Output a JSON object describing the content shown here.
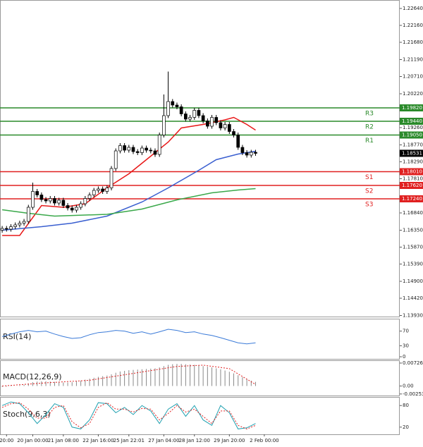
{
  "chart_data": [
    {
      "type": "candlestick",
      "xlim": [
        -0.5,
        91
      ],
      "ylim": [
        1.139,
        1.2284
      ],
      "xticks": [
        {
          "value": 1,
          "label": "20:00"
        },
        {
          "value": 7,
          "label": "20 Jan 00:00"
        },
        {
          "value": 14,
          "label": "21 Jan 08:00"
        },
        {
          "value": 22,
          "label": "22 Jan 16:00"
        },
        {
          "value": 29,
          "label": "25 Jan 22:01"
        },
        {
          "value": 37,
          "label": "27 Jan 04:00"
        },
        {
          "value": 44,
          "label": "28 Jan 12:00"
        },
        {
          "value": 52,
          "label": "29 Jan 20:00"
        },
        {
          "value": 60,
          "label": "2 Feb 00:00"
        }
      ],
      "yticks": [
        {
          "value": 1.2264,
          "label": "1.22640"
        },
        {
          "value": 1.2216,
          "label": "1.22160"
        },
        {
          "value": 1.2168,
          "label": "1.21680"
        },
        {
          "value": 1.2119,
          "label": "1.21190"
        },
        {
          "value": 1.2071,
          "label": "1.20710"
        },
        {
          "value": 1.2022,
          "label": "1.20220"
        },
        {
          "value": 1.1926,
          "label": "1.19260"
        },
        {
          "value": 1.1877,
          "label": "1.18770"
        },
        {
          "value": 1.1829,
          "label": "1.18290"
        },
        {
          "value": 1.1781,
          "label": "1.17810"
        },
        {
          "value": 1.1684,
          "label": "1.16840"
        },
        {
          "value": 1.1635,
          "label": "1.16350"
        },
        {
          "value": 1.1587,
          "label": "1.15870"
        },
        {
          "value": 1.1539,
          "label": "1.15390"
        },
        {
          "value": 1.149,
          "label": "1.14900"
        },
        {
          "value": 1.1442,
          "label": "1.14420"
        },
        {
          "value": 1.1393,
          "label": "1.13930"
        }
      ],
      "up_color": "#ffffff",
      "down_color": "#000000",
      "ohlc": [
        [
          1.1635,
          1.1647,
          1.1628,
          1.164
        ],
        [
          1.164,
          1.1647,
          1.1631,
          1.1638
        ],
        [
          1.1638,
          1.1652,
          1.1631,
          1.1645
        ],
        [
          1.1645,
          1.1657,
          1.1638,
          1.165
        ],
        [
          1.165,
          1.1662,
          1.1643,
          1.1655
        ],
        [
          1.1655,
          1.1667,
          1.1648,
          1.166
        ],
        [
          1.166,
          1.1707,
          1.1653,
          1.17
        ],
        [
          1.17,
          1.177,
          1.1693,
          1.1745
        ],
        [
          1.1745,
          1.1752,
          1.1728,
          1.1735
        ],
        [
          1.1735,
          1.1742,
          1.1715,
          1.1722
        ],
        [
          1.1722,
          1.1729,
          1.1711,
          1.1718
        ],
        [
          1.1718,
          1.1732,
          1.1711,
          1.1725
        ],
        [
          1.1725,
          1.1732,
          1.1705,
          1.1712
        ],
        [
          1.1712,
          1.1727,
          1.1705,
          1.172
        ],
        [
          1.172,
          1.1727,
          1.1698,
          1.1705
        ],
        [
          1.1705,
          1.1712,
          1.1691,
          1.1698
        ],
        [
          1.1698,
          1.1705,
          1.1685,
          1.1692
        ],
        [
          1.1692,
          1.1707,
          1.1685,
          1.17
        ],
        [
          1.17,
          1.1717,
          1.1693,
          1.171
        ],
        [
          1.171,
          1.1732,
          1.1703,
          1.1725
        ],
        [
          1.1725,
          1.1742,
          1.1718,
          1.1735
        ],
        [
          1.1735,
          1.1755,
          1.1728,
          1.1748
        ],
        [
          1.1748,
          1.1759,
          1.1741,
          1.1752
        ],
        [
          1.1752,
          1.1759,
          1.1738,
          1.1745
        ],
        [
          1.1745,
          1.1762,
          1.1738,
          1.1755
        ],
        [
          1.1755,
          1.1817,
          1.1748,
          1.181
        ],
        [
          1.181,
          1.1867,
          1.1803,
          1.186
        ],
        [
          1.186,
          1.1882,
          1.1853,
          1.1875
        ],
        [
          1.1875,
          1.1882,
          1.1855,
          1.1862
        ],
        [
          1.1862,
          1.1877,
          1.1855,
          1.187
        ],
        [
          1.187,
          1.1877,
          1.1851,
          1.1858
        ],
        [
          1.1858,
          1.1865,
          1.1848,
          1.1855
        ],
        [
          1.1855,
          1.1875,
          1.1848,
          1.1868
        ],
        [
          1.1868,
          1.1875,
          1.1855,
          1.1862
        ],
        [
          1.1862,
          1.1869,
          1.1853,
          1.186
        ],
        [
          1.186,
          1.1867,
          1.1843,
          1.185
        ],
        [
          1.185,
          1.1912,
          1.1843,
          1.1905
        ],
        [
          1.1905,
          1.202,
          1.1898,
          1.196
        ],
        [
          1.196,
          1.2085,
          1.1953,
          1.2
        ],
        [
          1.2,
          1.2007,
          1.1983,
          1.199
        ],
        [
          1.199,
          1.1997,
          1.1978,
          1.1985
        ],
        [
          1.1985,
          1.1992,
          1.1958,
          1.1965
        ],
        [
          1.1965,
          1.1972,
          1.1943,
          1.195
        ],
        [
          1.195,
          1.1962,
          1.1943,
          1.1955
        ],
        [
          1.1955,
          1.1982,
          1.1948,
          1.1975
        ],
        [
          1.1975,
          1.1982,
          1.1953,
          1.196
        ],
        [
          1.196,
          1.1967,
          1.1938,
          1.1945
        ],
        [
          1.1945,
          1.1952,
          1.1923,
          1.193
        ],
        [
          1.193,
          1.1962,
          1.1923,
          1.1955
        ],
        [
          1.1955,
          1.1962,
          1.1933,
          1.194
        ],
        [
          1.194,
          1.1947,
          1.1918,
          1.1925
        ],
        [
          1.1925,
          1.1942,
          1.1918,
          1.1935
        ],
        [
          1.1935,
          1.1942,
          1.1908,
          1.1915
        ],
        [
          1.1915,
          1.1922,
          1.1898,
          1.1905
        ],
        [
          1.1905,
          1.1912,
          1.1863,
          1.187
        ],
        [
          1.187,
          1.1877,
          1.1848,
          1.1855
        ],
        [
          1.1855,
          1.1862,
          1.1841,
          1.1848
        ],
        [
          1.1848,
          1.1863,
          1.1841,
          1.1856
        ],
        [
          1.1856,
          1.1863,
          1.1846,
          1.1853
        ]
      ],
      "series": [
        {
          "color": "#e81818",
          "x": [
            0,
            4,
            9,
            14,
            19,
            24,
            29,
            33,
            38,
            41,
            46,
            51,
            53,
            56,
            58
          ],
          "values": [
            1.162,
            1.162,
            1.1705,
            1.17,
            1.171,
            1.1755,
            1.1795,
            1.1835,
            1.1885,
            1.1925,
            1.1935,
            1.1948,
            1.1955,
            1.1935,
            1.1919
          ]
        },
        {
          "color": "#3a5fd0",
          "x": [
            0,
            9,
            16,
            24,
            32,
            38,
            45,
            49,
            54,
            58
          ],
          "values": [
            1.1635,
            1.1645,
            1.1655,
            1.1675,
            1.1715,
            1.1755,
            1.1805,
            1.1835,
            1.1851,
            1.1859
          ]
        },
        {
          "color": "#3aa84a",
          "x": [
            0,
            6,
            12,
            24,
            32,
            40,
            48,
            54,
            58
          ],
          "values": [
            1.1693,
            1.1683,
            1.1675,
            1.168,
            1.1695,
            1.1721,
            1.1741,
            1.1749,
            1.1753
          ]
        }
      ],
      "levels": [
        {
          "name": "R3",
          "value": 1.1982,
          "value_label": "1.19820",
          "color": "#2a8a2a"
        },
        {
          "name": "R2",
          "value": 1.1944,
          "value_label": "1.19440",
          "color": "#2a8a2a"
        },
        {
          "name": "R1",
          "value": 1.1905,
          "value_label": "1.19050",
          "color": "#2a8a2a"
        },
        {
          "name": "S1",
          "value": 1.1801,
          "value_label": "1.18010",
          "color": "#e02020"
        },
        {
          "name": "S2",
          "value": 1.1762,
          "value_label": "1.17620",
          "color": "#e02020"
        },
        {
          "name": "S3",
          "value": 1.1724,
          "value_label": "1.17240",
          "color": "#e02020"
        }
      ],
      "last_price": 1.18531
    },
    {
      "type": "line",
      "title": "RSI(14)",
      "xlim": [
        -0.5,
        91
      ],
      "ylim": [
        0,
        100
      ],
      "yticks": [
        70,
        30,
        0
      ],
      "series": [
        {
          "color": "#3a7ad8",
          "x": [
            0,
            2,
            4,
            6,
            8,
            10,
            12,
            14,
            16,
            18,
            20,
            22,
            24,
            26,
            28,
            30,
            32,
            34,
            36,
            38,
            40,
            42,
            44,
            46,
            48,
            50,
            52,
            54,
            56,
            58
          ],
          "values": [
            55,
            62,
            68,
            72,
            68,
            70,
            62,
            55,
            50,
            52,
            60,
            66,
            68,
            72,
            70,
            64,
            68,
            62,
            68,
            75,
            72,
            66,
            68,
            62,
            58,
            52,
            45,
            38,
            35,
            38
          ]
        }
      ]
    },
    {
      "type": "macd",
      "title": "MACD(12,26,9)",
      "xlim": [
        -0.5,
        91
      ],
      "ylim": [
        -0.0028,
        0.0077
      ],
      "yticks": [
        0.007262,
        {
          "value": 0,
          "label": "0.00"
        },
        -0.002531
      ],
      "bar_color": "#888888",
      "values": [
        -0.0003,
        -0.0002,
        -0.0001,
        0,
        0.0002,
        0.0004,
        0.0008,
        0.0012,
        0.0014,
        0.0015,
        0.0015,
        0.0014,
        0.0013,
        0.0012,
        0.0011,
        0.0011,
        0.0012,
        0.0014,
        0.0017,
        0.002,
        0.0023,
        0.0026,
        0.0029,
        0.0031,
        0.0033,
        0.0037,
        0.0042,
        0.0046,
        0.0048,
        0.005,
        0.0051,
        0.0052,
        0.0053,
        0.0054,
        0.0055,
        0.0056,
        0.0059,
        0.0063,
        0.0067,
        0.0069,
        0.007,
        0.007,
        0.0069,
        0.0068,
        0.0067,
        0.0065,
        0.0063,
        0.0061,
        0.0059,
        0.0056,
        0.0053,
        0.0049,
        0.0045,
        0.004,
        0.0034,
        0.0028,
        0.0022,
        0.0017,
        0.0013
      ],
      "series": [
        {
          "color": "#e02020",
          "dashed": true,
          "x": [
            0,
            10,
            20,
            30,
            40,
            46,
            52,
            58
          ],
          "values": [
            0,
            0.001,
            0.0018,
            0.004,
            0.0062,
            0.0066,
            0.0055,
            0.0005
          ]
        }
      ]
    },
    {
      "type": "line",
      "title": "Stoch(9,6,3)",
      "xlim": [
        -0.5,
        91
      ],
      "ylim": [
        0,
        100
      ],
      "yticks": [
        80,
        20
      ],
      "series": [
        {
          "color": "#1fa0b0",
          "x": [
            0,
            2,
            4,
            6,
            8,
            10,
            12,
            14,
            16,
            18,
            20,
            22,
            24,
            26,
            28,
            30,
            32,
            34,
            36,
            38,
            40,
            42,
            44,
            46,
            48,
            50,
            52,
            54,
            56,
            58
          ],
          "values": [
            80,
            90,
            85,
            60,
            30,
            55,
            85,
            75,
            20,
            15,
            40,
            88,
            85,
            60,
            75,
            55,
            80,
            65,
            30,
            70,
            85,
            50,
            80,
            40,
            25,
            80,
            60,
            15,
            18,
            30
          ]
        },
        {
          "color": "#e02020",
          "dashed": true,
          "x": [
            0,
            2,
            4,
            6,
            8,
            10,
            12,
            14,
            16,
            18,
            20,
            22,
            24,
            26,
            28,
            30,
            32,
            34,
            36,
            38,
            40,
            42,
            44,
            46,
            48,
            50,
            52,
            54,
            56,
            58
          ],
          "values": [
            75,
            85,
            88,
            70,
            45,
            45,
            75,
            80,
            35,
            18,
            30,
            75,
            88,
            70,
            70,
            62,
            72,
            70,
            40,
            58,
            80,
            62,
            70,
            50,
            30,
            65,
            65,
            25,
            15,
            25
          ]
        }
      ]
    }
  ]
}
